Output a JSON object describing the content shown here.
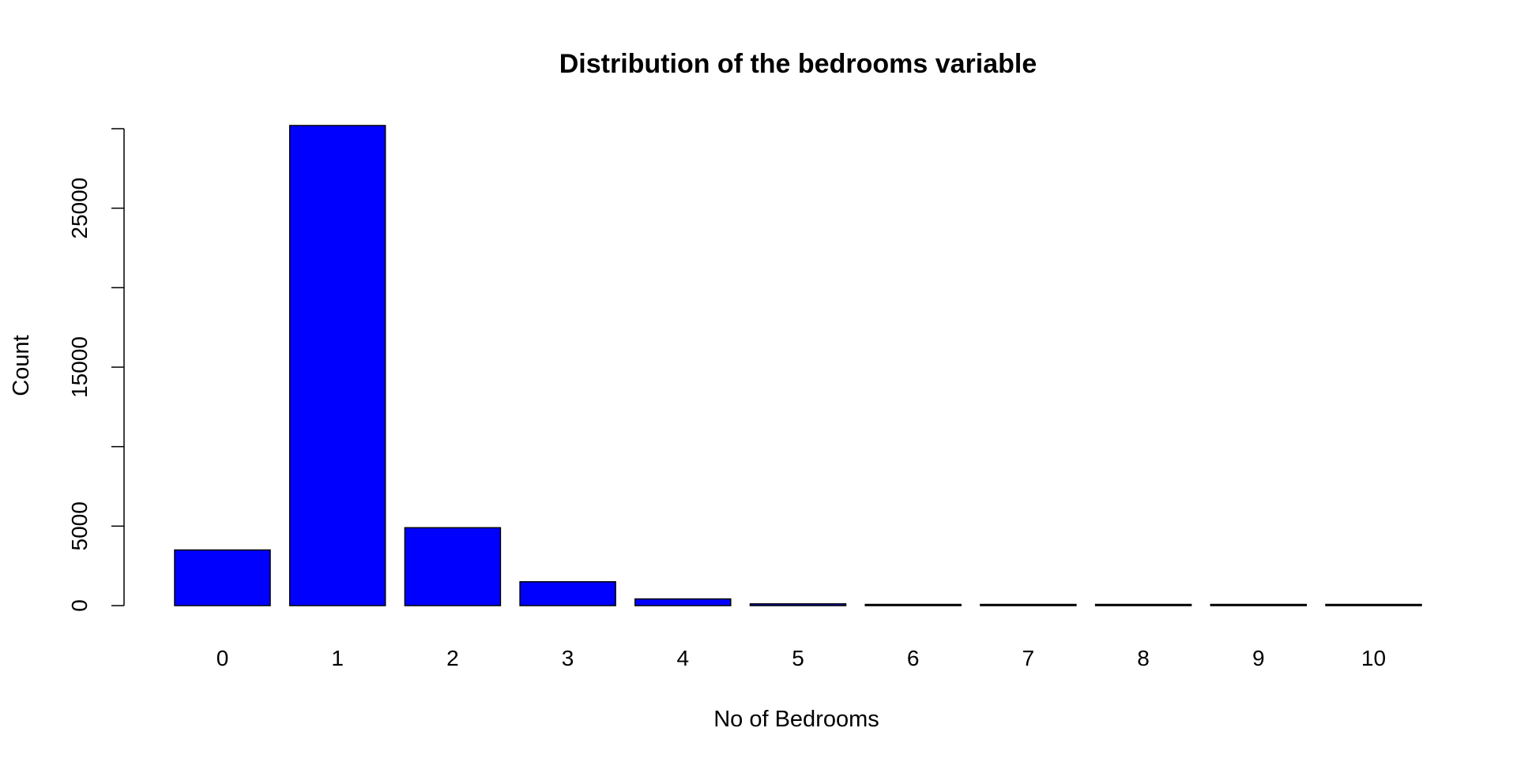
{
  "chart_data": {
    "type": "bar",
    "title": "Distribution of the bedrooms variable",
    "xlabel": "No of Bedrooms",
    "ylabel": "Count",
    "categories": [
      "0",
      "1",
      "2",
      "3",
      "4",
      "5",
      "6",
      "7",
      "8",
      "9",
      "10"
    ],
    "values": [
      3500,
      30200,
      4900,
      1500,
      420,
      110,
      50,
      45,
      15,
      10,
      5
    ],
    "ylim": [
      0,
      30000
    ],
    "y_ticks": [
      0,
      5000,
      10000,
      15000,
      20000,
      25000,
      30000
    ],
    "y_tick_labels_shown": [
      "0",
      "5000",
      "15000",
      "25000"
    ],
    "bar_color": "#0000ff",
    "grid": false,
    "legend": "none"
  }
}
